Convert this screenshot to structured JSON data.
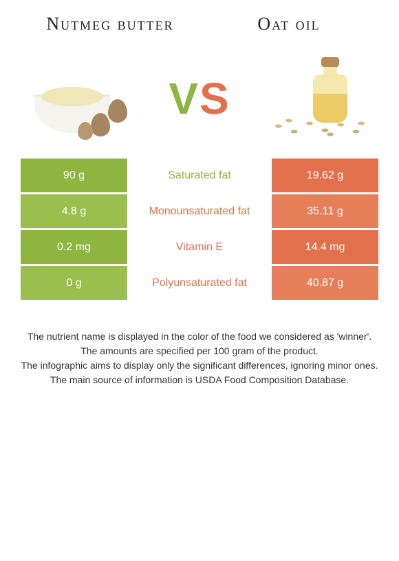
{
  "left_food": {
    "title": "Nutmeg butter"
  },
  "right_food": {
    "title": "Oat oil"
  },
  "vs": {
    "v": "V",
    "s": "S"
  },
  "colors": {
    "left_food": "#8eb53f",
    "right_food": "#e2704c",
    "left_food_alt": "#9bbf4e",
    "right_food_alt": "#e67e5a"
  },
  "rows": [
    {
      "left": "90 g",
      "label": "Saturated fat",
      "right": "19.62 g",
      "winner": "left"
    },
    {
      "left": "4.8 g",
      "label": "Monounsaturated fat",
      "right": "35.11 g",
      "winner": "right"
    },
    {
      "left": "0.2 mg",
      "label": "Vitamin E",
      "right": "14.4 mg",
      "winner": "right"
    },
    {
      "left": "0 g",
      "label": "Polyunsaturated fat",
      "right": "40.87 g",
      "winner": "right"
    }
  ],
  "footer": {
    "line1": "The nutrient name is displayed in the color of the food we considered as 'winner'.",
    "line2": "The amounts are specified per 100 gram of the product.",
    "line3": "The infographic aims to display only the significant differences, ignoring minor ones.",
    "line4": "The main source of information is USDA Food Composition Database."
  }
}
